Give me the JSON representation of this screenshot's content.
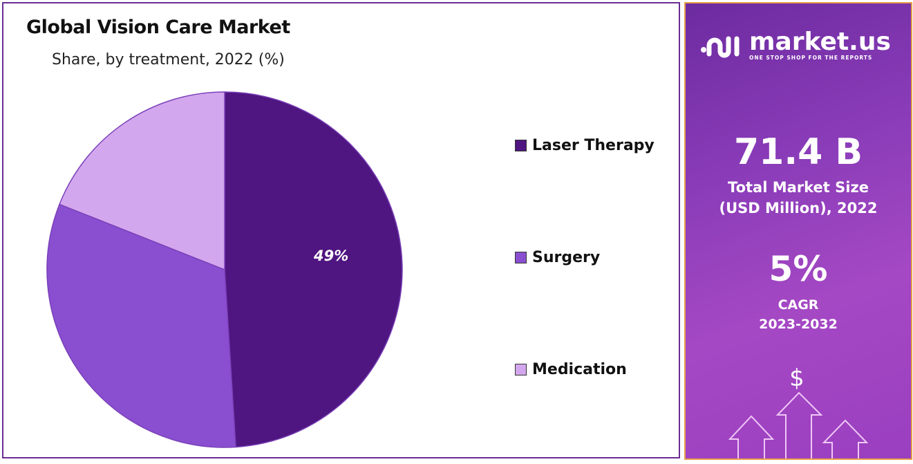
{
  "chart_data": {
    "type": "pie",
    "title": "Global Vision Care Market",
    "subtitle": "Share, by treatment, 2022 (%)",
    "categories": [
      "Laser Therapy",
      "Surgery",
      "Medication"
    ],
    "values": [
      49,
      32,
      19
    ],
    "colors": [
      "#4f1580",
      "#8a4fd0",
      "#d3a7ee"
    ],
    "data_labels": [
      "49%",
      "",
      ""
    ],
    "legend_position": "right"
  },
  "sidebar": {
    "brand": "market.us",
    "tagline": "ONE STOP SHOP FOR THE REPORTS",
    "market_size": "71.4 B",
    "market_size_label_1": "Total Market Size",
    "market_size_label_2": "(USD Million), 2022",
    "cagr": "5%",
    "cagr_label": "CAGR",
    "cagr_period": "2023-2032",
    "dollar_symbol": "$",
    "icon": "rising-arrows-icon"
  }
}
